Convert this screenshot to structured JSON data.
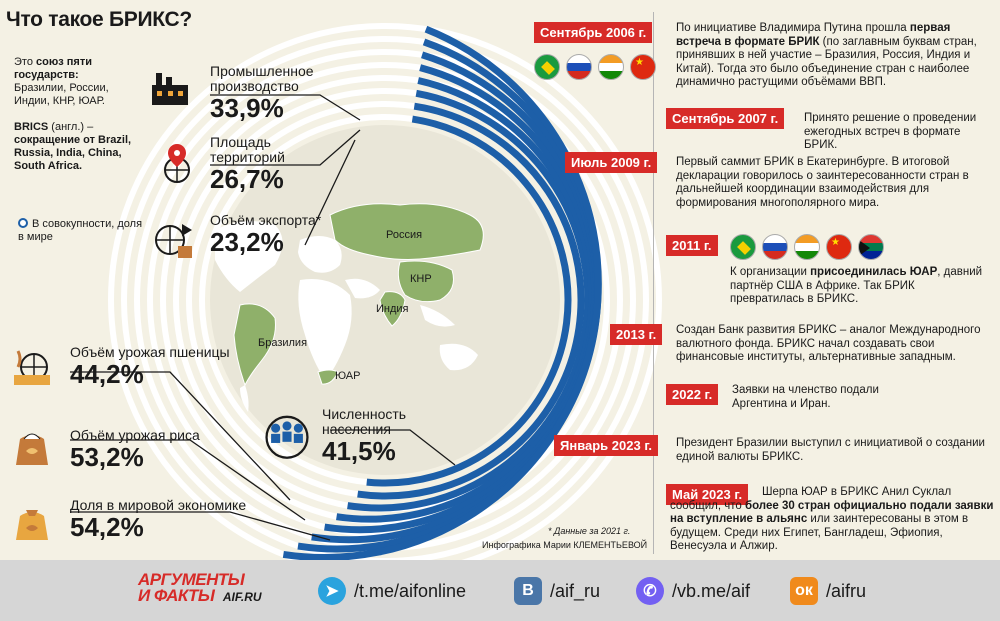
{
  "title": "Что такое БРИКС?",
  "intro": {
    "p1_prefix": "Это ",
    "p1_bold": "союз пяти государств:",
    "p1_rest": " Бразилии, России, Индии, КНР, ЮАР.",
    "p2_bold1": "BRICS",
    "p2_mid": " (англ.) – ",
    "p2_bold2": "сокращение",
    "p2_rest": " от Brazil, Russia, India, China, South Africa."
  },
  "legend": "В совокупности, доля в мире",
  "stats": [
    {
      "label": "Промышленное производство",
      "value": "33,9%",
      "icon": "factory-icon"
    },
    {
      "label": "Площадь территорий",
      "value": "26,7%",
      "icon": "location-globe-icon"
    },
    {
      "label": "Объём экспорта*",
      "value": "23,2%",
      "icon": "export-globe-icon"
    },
    {
      "label": "Объём урожая пшеницы",
      "value": "44,2%",
      "icon": "wheat-globe-icon"
    },
    {
      "label": "Объём урожая риса",
      "value": "53,2%",
      "icon": "rice-sack-icon"
    },
    {
      "label": "Доля в мировой экономике",
      "value": "54,2%",
      "icon": "economy-sack-icon"
    },
    {
      "label": "Численность населения",
      "value": "41,5%",
      "icon": "population-icon"
    }
  ],
  "map_labels": {
    "russia": "Россия",
    "china": "КНР",
    "india": "Индия",
    "brazil": "Бразилия",
    "sa": "ЮАР"
  },
  "timeline": [
    {
      "date": "Сентябрь 2006 г.",
      "text_pre": "По инициативе Владимира Путина прошла ",
      "text_bold": "первая встреча в формате БРИК",
      "text_post": " (по заглавным буквам стран, принявших в ней участие – Бразилия, Россия, Индия и Китай). Тогда это было объединение стран с наиболее динамично растущими объёмами ВВП."
    },
    {
      "date": "Сентябрь 2007 г.",
      "text_pre": "Принято решение о проведении ежегодных встреч в формате БРИК.",
      "text_bold": "",
      "text_post": ""
    },
    {
      "date": "Июль 2009 г.",
      "text_pre": "Первый саммит БРИК в Екатеринбурге. В итоговой декларации говорилось о заинтересованности стран в дальнейшей координации взаимодействия для формирования многополярного мира.",
      "text_bold": "",
      "text_post": ""
    },
    {
      "date": "2011 г.",
      "text_pre": "К организации ",
      "text_bold": "присоединилась ЮАР",
      "text_post": ", давний партнёр США в Африке. Так БРИК превратилась в БРИКС."
    },
    {
      "date": "2013 г.",
      "text_pre": "Создан Банк развития БРИКС – аналог Международного валютного фонда. БРИКС начал создавать свои финансовые институты, альтернативные западным.",
      "text_bold": "",
      "text_post": ""
    },
    {
      "date": "2022 г.",
      "text_pre": "Заявки на членство подали Аргентина и Иран.",
      "text_bold": "",
      "text_post": ""
    },
    {
      "date": "Январь 2023 г.",
      "text_pre": "Президент Бразилии выступил с инициативой о создании единой валюты БРИКС.",
      "text_bold": "",
      "text_post": ""
    },
    {
      "date": "Май 2023 г.",
      "text_pre": "Шерпа ЮАР в БРИКС Анил Суклал сообщил, что ",
      "text_bold": "более 30 стран официально подали заявки на вступление в альянс",
      "text_post": " или заинтересованы в этом в будущем. Среди них Египет, Бангладеш, Эфиопия, Венесуэла и Алжир."
    }
  ],
  "note": "* Данные за 2021 г.",
  "credit": "Инфографика Марии КЛЕМЕНТЬЕВОЙ",
  "footer": {
    "logo_line1": "АРГУМЕНТЫ",
    "logo_line2": "И ФАКТЫ",
    "logo_site": "AIF.RU",
    "links": [
      {
        "icon": "telegram-icon",
        "text": "/t.me/aifonline",
        "color": "#2aa3de"
      },
      {
        "icon": "vk-icon",
        "text": "/aif_ru",
        "color": "#4a76a8"
      },
      {
        "icon": "viber-icon",
        "text": "/vb.me/aif",
        "color": "#7360f2"
      },
      {
        "icon": "odnoklassniki-icon",
        "text": "/aifru",
        "color": "#f08a1c"
      }
    ]
  },
  "colors": {
    "ring": "#1d5fa8",
    "accent": "#d72b28",
    "brics_land": "#8fb06a",
    "land": "#ffffff"
  }
}
